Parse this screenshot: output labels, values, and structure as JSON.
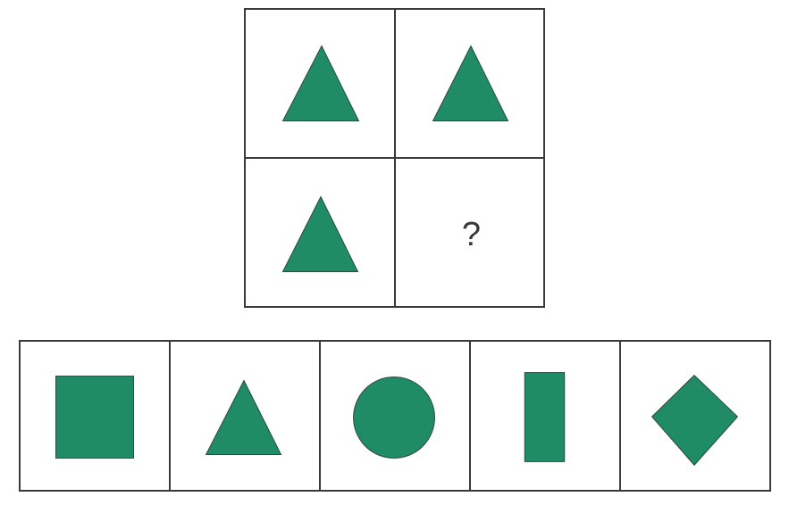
{
  "puzzle": {
    "question_mark": "?",
    "cells": [
      {
        "shape": "triangle"
      },
      {
        "shape": "triangle"
      },
      {
        "shape": "triangle"
      },
      {
        "shape": "unknown"
      }
    ]
  },
  "options": [
    {
      "shape": "square"
    },
    {
      "shape": "triangle"
    },
    {
      "shape": "circle"
    },
    {
      "shape": "rectangle"
    },
    {
      "shape": "diamond"
    }
  ],
  "colors": {
    "shape_fill": "#1f8c66",
    "shape_stroke": "#2a4a3c",
    "border": "#3a3a3a",
    "text": "#3a3a3a"
  }
}
